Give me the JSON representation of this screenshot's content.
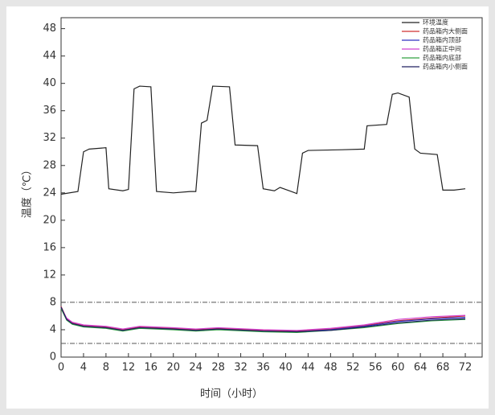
{
  "chart_data": {
    "type": "line",
    "x_label": "时间（小时）",
    "y_label": "温度（℃）",
    "xlim": [
      0,
      75
    ],
    "ylim": [
      0,
      49.6
    ],
    "xticks": [
      0,
      4,
      8,
      12,
      16,
      20,
      24,
      28,
      32,
      36,
      40,
      44,
      48,
      52,
      56,
      60,
      64,
      68,
      72
    ],
    "yticks": [
      0,
      4,
      8,
      12,
      16,
      20,
      24,
      28,
      32,
      36,
      40,
      44,
      48
    ],
    "reference_lines": [
      8,
      2
    ],
    "legend": "top-right",
    "series": [
      {
        "name": "环境温度",
        "color": "#222222",
        "x": [
          0,
          3,
          4,
          5,
          8,
          8.5,
          11,
          12,
          13,
          14,
          16,
          17,
          20,
          23,
          24,
          25,
          26,
          27,
          30,
          31,
          35,
          36,
          38,
          39,
          41,
          42,
          43,
          44,
          50,
          54,
          54.5,
          58,
          59,
          60,
          62,
          63,
          64,
          67,
          68,
          70,
          72
        ],
        "values": [
          23.8,
          24.2,
          30,
          30.4,
          30.6,
          24.6,
          24.3,
          24.5,
          39.2,
          39.6,
          39.5,
          24.2,
          24,
          24.2,
          24.2,
          34.2,
          34.6,
          39.6,
          39.5,
          31,
          30.9,
          24.6,
          24.3,
          24.8,
          24.2,
          23.9,
          29.8,
          30.2,
          30.3,
          30.4,
          33.8,
          34,
          38.4,
          38.6,
          38,
          30.4,
          29.8,
          29.6,
          24.4,
          24.4,
          24.6
        ]
      },
      {
        "name": "药品箱内大侧面",
        "color": "#d03030",
        "x": [
          0,
          1,
          2,
          4,
          8,
          11,
          14,
          20,
          24,
          28,
          36,
          42,
          48,
          54,
          60,
          66,
          72
        ],
        "values": [
          7.4,
          5.6,
          5,
          4.6,
          4.4,
          4,
          4.4,
          4.2,
          4,
          4.2,
          3.9,
          3.8,
          4.1,
          4.6,
          5.3,
          5.7,
          6
        ]
      },
      {
        "name": "药品箱内顶部",
        "color": "#3030c0",
        "x": [
          0,
          1,
          2,
          4,
          8,
          11,
          14,
          20,
          24,
          28,
          36,
          42,
          48,
          54,
          60,
          66,
          72
        ],
        "values": [
          7.3,
          5.5,
          4.9,
          4.5,
          4.3,
          3.9,
          4.3,
          4.1,
          3.9,
          4.1,
          3.8,
          3.7,
          4,
          4.5,
          5.2,
          5.6,
          5.8
        ]
      },
      {
        "name": "药品箱正中间",
        "color": "#d040d0",
        "x": [
          0,
          1,
          2,
          4,
          8,
          11,
          14,
          20,
          24,
          28,
          36,
          42,
          48,
          54,
          60,
          66,
          72
        ],
        "values": [
          7.2,
          5.7,
          5.1,
          4.7,
          4.5,
          4.1,
          4.5,
          4.3,
          4.1,
          4.3,
          4,
          3.9,
          4.2,
          4.7,
          5.5,
          5.9,
          6.1
        ]
      },
      {
        "name": "药品箱内底部",
        "color": "#30a040",
        "x": [
          0,
          1,
          2,
          4,
          8,
          11,
          14,
          20,
          24,
          28,
          36,
          42,
          48,
          54,
          60,
          66,
          72
        ],
        "values": [
          7.1,
          5.4,
          4.8,
          4.4,
          4.2,
          3.8,
          4.2,
          4,
          3.8,
          4,
          3.7,
          3.6,
          3.9,
          4.3,
          4.9,
          5.3,
          5.5
        ]
      },
      {
        "name": "药品箱内小侧面",
        "color": "#202060",
        "x": [
          0,
          1,
          2,
          4,
          8,
          11,
          14,
          20,
          24,
          28,
          36,
          42,
          48,
          54,
          60,
          66,
          72
        ],
        "values": [
          7.3,
          5.5,
          4.9,
          4.5,
          4.3,
          3.9,
          4.3,
          4.1,
          3.9,
          4.1,
          3.8,
          3.7,
          3.9,
          4.4,
          5,
          5.4,
          5.6
        ]
      }
    ]
  }
}
